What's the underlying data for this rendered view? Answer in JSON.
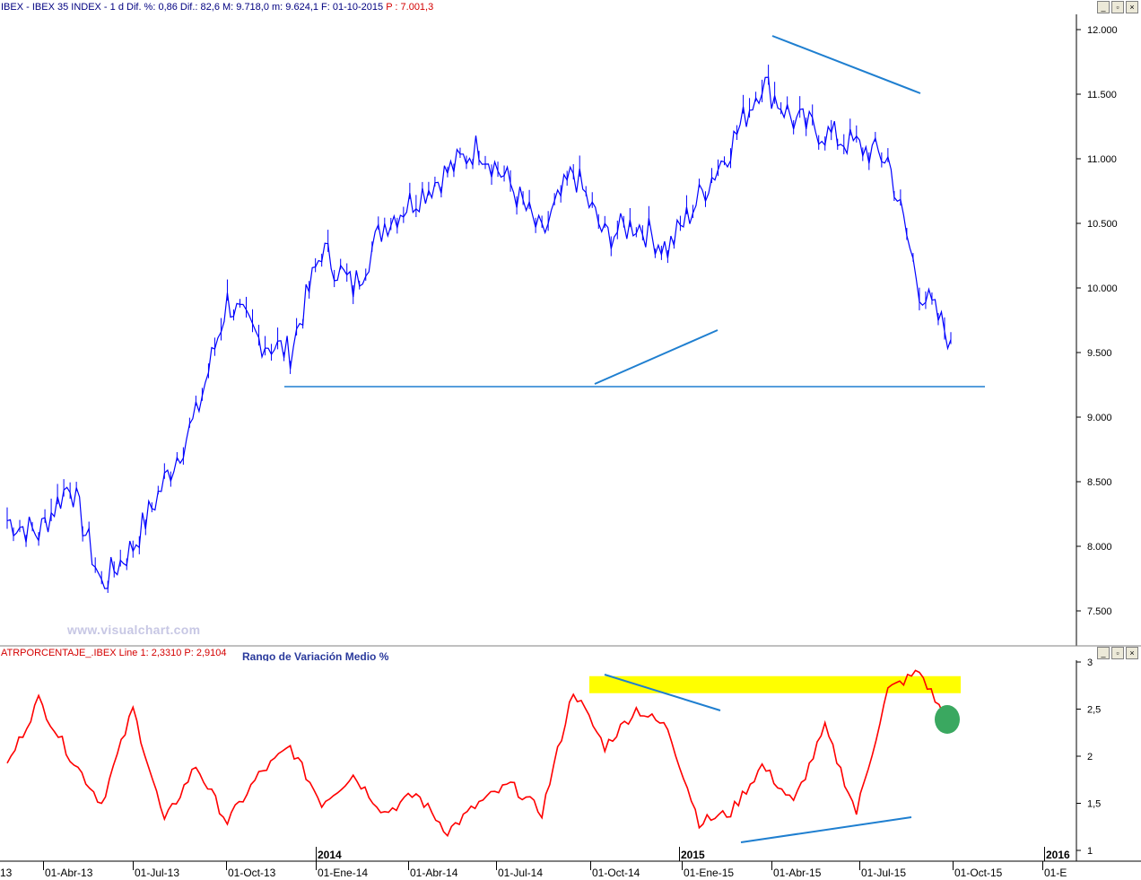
{
  "header": {
    "title": "IBEX - IBEX 35 INDEX - 1 d Dif. %: 0,86  Dif.: 82,6  M: 9.718,0  m: 9.624,1  F: 01-10-2015",
    "price": "P : 7.001,3"
  },
  "indicator_header": {
    "label": "ATRPORCENTAJE_.IBEX Line 1: 2,3310",
    "price": "P: 2,9104",
    "subtitle": "Rango de Variación Medio %"
  },
  "watermark": "www.visualchart.com",
  "colors": {
    "price": "#0000ff",
    "indicator": "#ff0000",
    "trendline": "#1f7fd0",
    "highlight": "#ffff00",
    "marker": "#3aa860"
  },
  "chart_data": [
    {
      "type": "line",
      "title": "IBEX 35 INDEX",
      "x": [
        "2013-03",
        "2013-04",
        "2013-05",
        "2013-06",
        "2013-07",
        "2013-08",
        "2013-09",
        "2013-10",
        "2013-11",
        "2013-12",
        "2014-01",
        "2014-02",
        "2014-03",
        "2014-04",
        "2014-05",
        "2014-06",
        "2014-07",
        "2014-08",
        "2014-09",
        "2014-10",
        "2014-11",
        "2014-12",
        "2015-01",
        "2015-02",
        "2015-03",
        "2015-04",
        "2015-05",
        "2015-06",
        "2015-07",
        "2015-08",
        "2015-09"
      ],
      "series": [
        {
          "values": [
            8200,
            8100,
            8500,
            7700,
            8000,
            8500,
            9000,
            9900,
            9600,
            9500,
            10300,
            10000,
            10500,
            10700,
            10900,
            11100,
            10800,
            10400,
            10900,
            10400,
            10500,
            10300,
            10700,
            11100,
            11600,
            11300,
            11200,
            11100,
            11000,
            10000,
            9600
          ]
        }
      ],
      "ylim": [
        7300,
        12100
      ],
      "yticks": [
        "7.500",
        "8.000",
        "8.500",
        "9.000",
        "9.500",
        "10.000",
        "10.500",
        "11.000",
        "11.500",
        "12.000"
      ],
      "ytick_values": [
        7500,
        8000,
        8500,
        9000,
        9500,
        10000,
        10500,
        11000,
        11500,
        12000
      ]
    },
    {
      "type": "line",
      "title": "Rango de Variación Medio %",
      "series": [
        {
          "name": "Line 1",
          "values": [
            1.9,
            2.6,
            2.0,
            1.5,
            2.5,
            1.3,
            1.9,
            1.3,
            1.8,
            2.1,
            1.5,
            1.8,
            1.4,
            1.6,
            1.2,
            1.5,
            1.7,
            1.4,
            2.7,
            2.1,
            2.5,
            2.3,
            1.3,
            1.4,
            1.9,
            1.5,
            2.3,
            1.4,
            2.7,
            2.9,
            2.3
          ]
        }
      ],
      "ylim": [
        0.95,
        3.0
      ],
      "yticks": [
        "1",
        "1,5",
        "2",
        "2,5",
        "3"
      ],
      "ytick_values": [
        1,
        1.5,
        2,
        2.5,
        3
      ]
    }
  ],
  "x_axis": {
    "labels": [
      "13",
      "01-Abr-13",
      "01-Jul-13",
      "01-Oct-13",
      "01-Ene-14",
      "01-Abr-14",
      "01-Jul-14",
      "01-Oct-14",
      "01-Ene-15",
      "01-Abr-15",
      "01-Jul-15",
      "01-Oct-15",
      "01-E"
    ],
    "years": [
      "2014",
      "2015",
      "2016"
    ]
  }
}
